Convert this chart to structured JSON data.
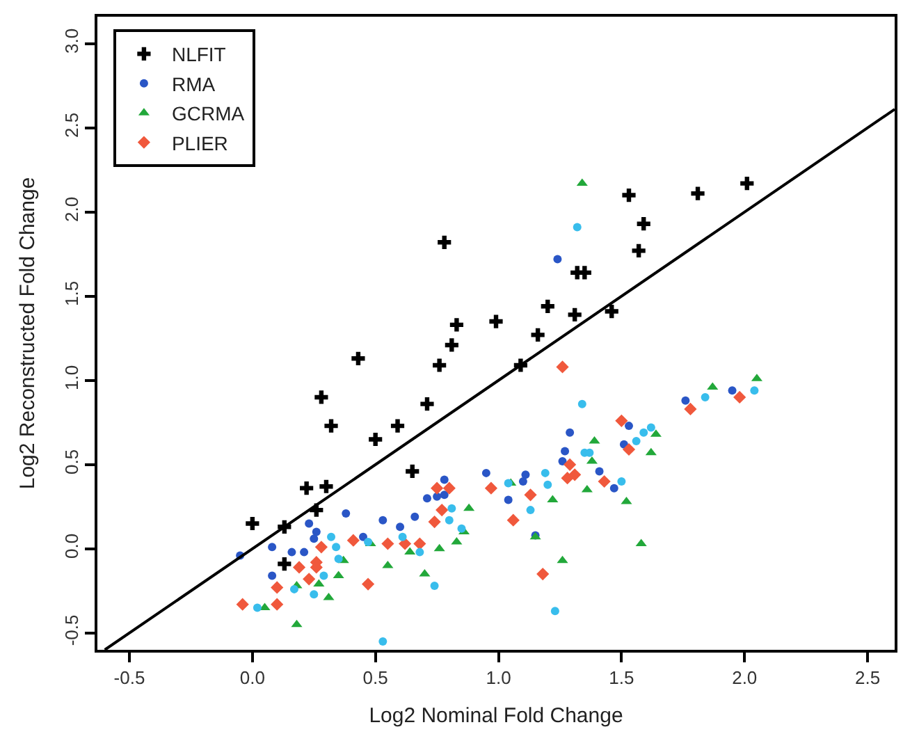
{
  "chart_data": {
    "type": "scatter",
    "xlabel": "Log2 Nominal Fold Change",
    "ylabel": "Log2 Reconstructed Fold Change",
    "xlim": [
      -0.63,
      2.61
    ],
    "ylim": [
      -0.6,
      3.16
    ],
    "xticks": [
      {
        "value": -0.5,
        "label": "-0.5"
      },
      {
        "value": 0,
        "label": "0.0"
      },
      {
        "value": 0.5,
        "label": "0.5"
      },
      {
        "value": 1,
        "label": "1.0"
      },
      {
        "value": 1.5,
        "label": "1.5"
      },
      {
        "value": 2,
        "label": "2.0"
      },
      {
        "value": 2.5,
        "label": "2.5"
      }
    ],
    "yticks": [
      {
        "value": -0.5,
        "label": "-0.5"
      },
      {
        "value": 0,
        "label": "0.0"
      },
      {
        "value": 0.5,
        "label": "0.5"
      },
      {
        "value": 1,
        "label": "1.0"
      },
      {
        "value": 1.5,
        "label": "1.5"
      },
      {
        "value": 2,
        "label": "2.0"
      },
      {
        "value": 2.5,
        "label": "2.5"
      },
      {
        "value": 3,
        "label": "3.0"
      }
    ],
    "legend": "top left",
    "series": [
      {
        "name": "NLFIT",
        "color": "#000000",
        "marker": "cross",
        "x": [
          0.78,
          0.83,
          0.81,
          0.76,
          0.43,
          0.28,
          0.32,
          0.5,
          0.59,
          0.71,
          0.65,
          0.22,
          0.3,
          0.26,
          0.0,
          0.13,
          0.13,
          0.99,
          1.09,
          1.16,
          1.2,
          1.31,
          1.32,
          1.35,
          1.46,
          1.53,
          1.59,
          1.57,
          1.81,
          2.01
        ],
        "values": [
          1.82,
          1.33,
          1.21,
          1.09,
          1.13,
          0.9,
          0.73,
          0.65,
          0.73,
          0.86,
          0.46,
          0.36,
          0.37,
          0.23,
          0.15,
          0.13,
          -0.09,
          1.35,
          1.09,
          1.27,
          1.44,
          1.39,
          1.64,
          1.64,
          1.41,
          2.1,
          1.93,
          1.77,
          2.11,
          2.17
        ]
      },
      {
        "name": "RMA",
        "color": "#2a56c6",
        "marker": "circle",
        "x": [
          0.78,
          0.78,
          0.71,
          0.66,
          0.6,
          0.53,
          0.45,
          0.38,
          0.23,
          0.25,
          0.26,
          0.21,
          0.16,
          0.08,
          0.08,
          -0.05,
          0.95,
          0.75,
          1.04,
          1.11,
          1.1,
          1.15,
          1.24,
          1.26,
          1.27,
          1.29,
          1.41,
          1.47,
          1.51,
          1.53,
          1.76,
          1.95
        ],
        "values": [
          0.41,
          0.32,
          0.3,
          0.19,
          0.13,
          0.17,
          0.07,
          0.21,
          0.15,
          0.06,
          0.1,
          -0.02,
          -0.02,
          0.01,
          -0.16,
          -0.04,
          0.45,
          0.31,
          0.29,
          0.44,
          0.4,
          0.08,
          1.72,
          0.52,
          0.58,
          0.69,
          0.46,
          0.36,
          0.62,
          0.73,
          0.88,
          0.94
        ]
      },
      {
        "name": "GCRMA",
        "color": "#22a83a",
        "marker": "triangle",
        "x": [
          0.88,
          0.83,
          0.86,
          0.76,
          0.7,
          0.64,
          0.55,
          0.48,
          0.37,
          0.35,
          0.31,
          0.27,
          0.18,
          0.05,
          0.18,
          1.34,
          1.05,
          1.22,
          1.26,
          1.36,
          1.38,
          1.39,
          1.52,
          1.58,
          1.62,
          1.64,
          1.87,
          2.05,
          1.15
        ],
        "values": [
          0.24,
          0.04,
          0.1,
          0.0,
          -0.15,
          -0.02,
          -0.1,
          0.03,
          -0.07,
          -0.16,
          -0.29,
          -0.21,
          -0.22,
          -0.35,
          -0.45,
          2.17,
          0.39,
          0.29,
          -0.07,
          0.35,
          0.52,
          0.64,
          0.28,
          0.03,
          0.57,
          0.68,
          0.96,
          1.01,
          0.07
        ]
      },
      {
        "name": "PLIER",
        "color": "#f0583c",
        "marker": "diamond",
        "x": [
          0.75,
          0.8,
          0.77,
          0.74,
          0.68,
          0.62,
          0.55,
          0.47,
          0.41,
          0.28,
          0.26,
          0.26,
          0.19,
          0.23,
          0.1,
          0.1,
          -0.04,
          0.97,
          1.06,
          1.13,
          1.18,
          1.26,
          1.28,
          1.31,
          1.29,
          1.43,
          1.5,
          1.53,
          1.78,
          1.98
        ],
        "values": [
          0.36,
          0.36,
          0.23,
          0.16,
          0.03,
          0.03,
          0.03,
          -0.21,
          0.05,
          0.01,
          -0.08,
          -0.11,
          -0.11,
          -0.18,
          -0.23,
          -0.33,
          -0.33,
          0.36,
          0.17,
          0.32,
          -0.15,
          1.08,
          0.42,
          0.44,
          0.5,
          0.4,
          0.76,
          0.59,
          0.83,
          0.9
        ]
      },
      {
        "color": "#38bdec",
        "marker": "circle",
        "x": [
          0.81,
          0.8,
          0.85,
          0.68,
          0.74,
          0.61,
          0.47,
          0.32,
          0.34,
          0.35,
          0.29,
          0.25,
          0.17,
          0.02,
          0.53,
          1.32,
          1.34,
          1.23,
          1.04,
          1.19,
          1.2,
          1.13,
          1.35,
          1.37,
          1.5,
          1.56,
          1.59,
          1.62,
          1.84,
          2.04
        ],
        "values": [
          0.24,
          0.17,
          0.12,
          -0.02,
          -0.22,
          0.07,
          0.04,
          0.07,
          0.01,
          -0.06,
          -0.16,
          -0.27,
          -0.24,
          -0.35,
          -0.55,
          1.91,
          0.86,
          -0.37,
          0.39,
          0.45,
          0.38,
          0.23,
          0.57,
          0.57,
          0.4,
          0.64,
          0.69,
          0.72,
          0.9,
          0.94
        ]
      },
      {
        "type": "line",
        "color": "#000000",
        "marker": "none",
        "line_style": "solid",
        "x": [
          -0.6,
          2.61
        ],
        "values": [
          -0.6,
          2.61
        ]
      }
    ]
  }
}
